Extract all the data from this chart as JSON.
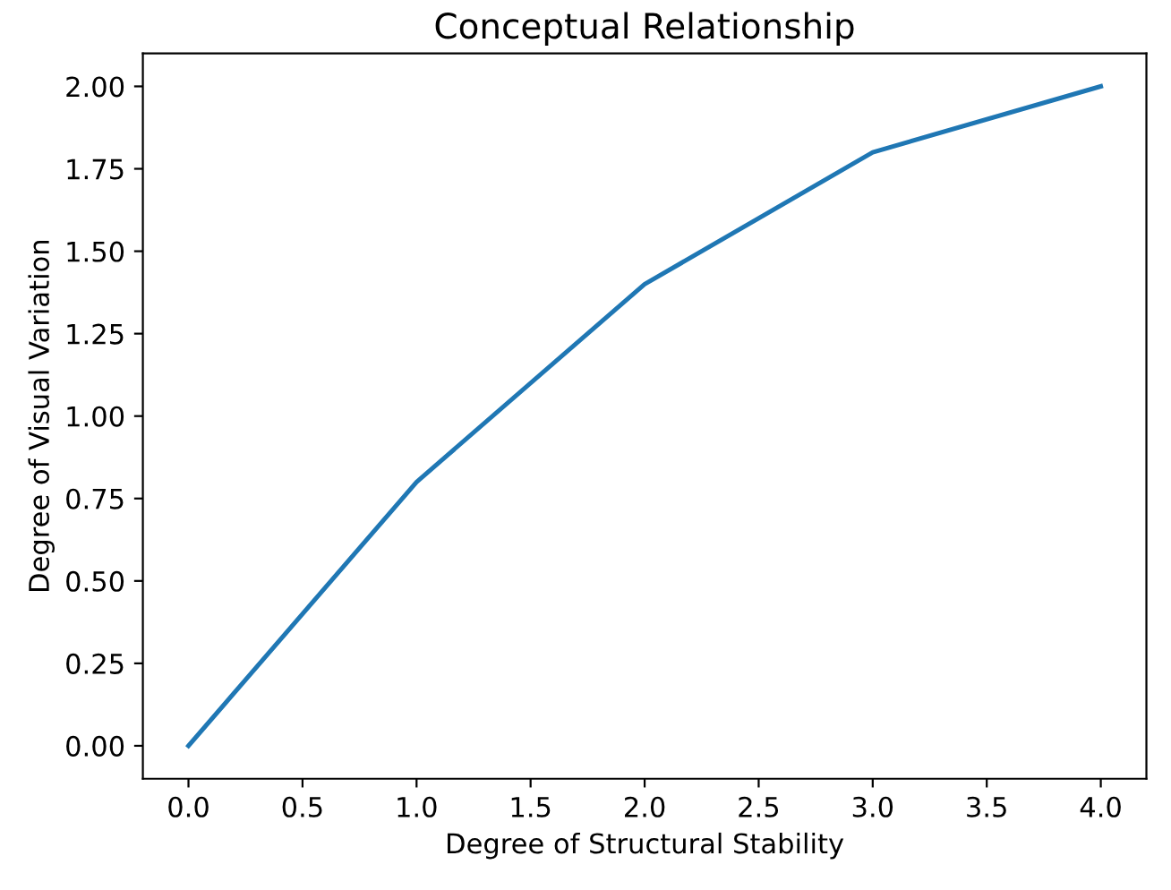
{
  "chart_data": {
    "type": "line",
    "title": "Conceptual Relationship",
    "xlabel": "Degree of Structural Stability",
    "ylabel": "Degree of Visual Variation",
    "x": [
      0,
      1,
      2,
      3,
      4
    ],
    "series": [
      {
        "color": "#1f77b4",
        "values": [
          0,
          0.8,
          1.4,
          1.8,
          2.0
        ]
      }
    ],
    "xlim": [
      -0.2,
      4.2
    ],
    "ylim": [
      -0.1,
      2.1
    ],
    "xticks": [
      {
        "value": 0,
        "label": "0.0"
      },
      {
        "value": 0.5,
        "label": "0.5"
      },
      {
        "value": 1,
        "label": "1.0"
      },
      {
        "value": 1.5,
        "label": "1.5"
      },
      {
        "value": 2,
        "label": "2.0"
      },
      {
        "value": 2.5,
        "label": "2.5"
      },
      {
        "value": 3,
        "label": "3.0"
      },
      {
        "value": 3.5,
        "label": "3.5"
      },
      {
        "value": 4,
        "label": "4.0"
      }
    ],
    "yticks": [
      {
        "value": 0,
        "label": "0.00"
      },
      {
        "value": 0.25,
        "label": "0.25"
      },
      {
        "value": 0.5,
        "label": "0.50"
      },
      {
        "value": 0.75,
        "label": "0.75"
      },
      {
        "value": 1,
        "label": "1.00"
      },
      {
        "value": 1.25,
        "label": "1.25"
      },
      {
        "value": 1.5,
        "label": "1.50"
      },
      {
        "value": 1.75,
        "label": "1.75"
      },
      {
        "value": 2,
        "label": "2.00"
      }
    ],
    "grid": false,
    "legend": false,
    "marker": "none",
    "line_style": "solid"
  }
}
